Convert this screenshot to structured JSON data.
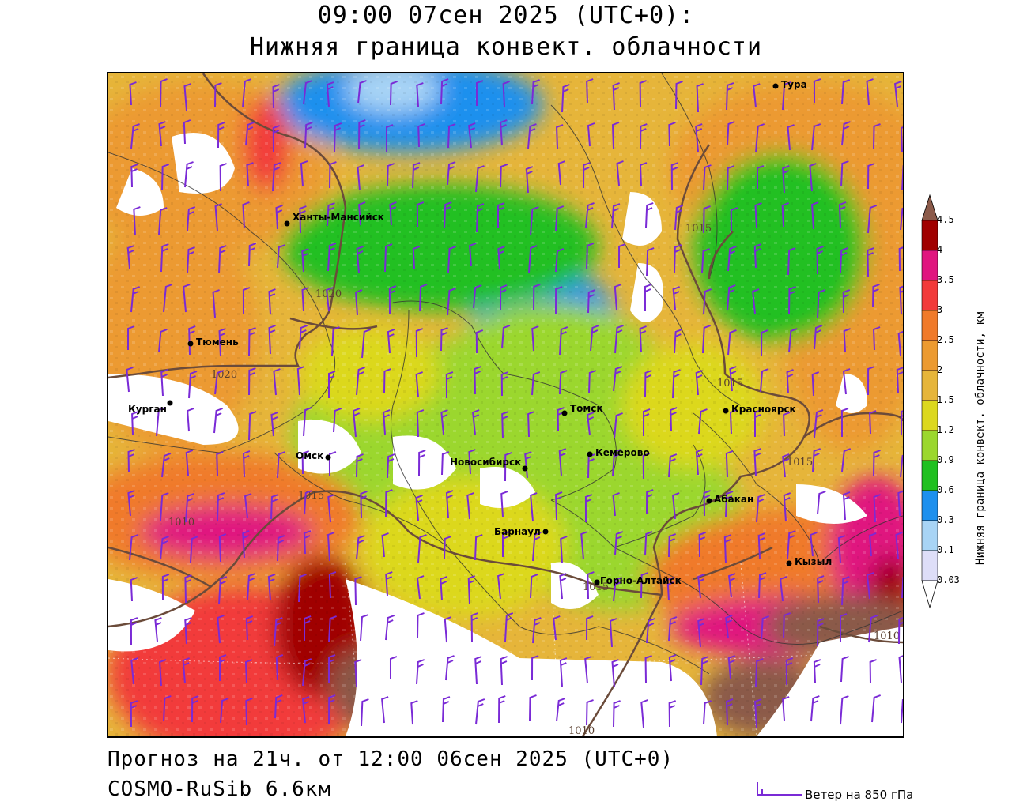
{
  "header": {
    "title_line1": "09:00 07сен 2025 (UTC+0):",
    "title_line2": "Нижняя граница конвект. облачности"
  },
  "footer": {
    "forecast_line": "Прогноз на 21ч. от 12:00 06сен 2025 (UTC+0)",
    "model_line": "COSMO-RuSib 6.6км",
    "wind_legend_label": "Ветер на 850 гПа"
  },
  "colorbar": {
    "title": "Нижняя граница конвект. облачности, км",
    "levels": [
      "4.5",
      "4",
      "3.5",
      "3",
      "2.5",
      "2",
      "1.5",
      "1.2",
      "0.9",
      "0.6",
      "0.3",
      "0.1",
      "0.03"
    ],
    "colors": [
      "#8b5a4a",
      "#a00000",
      "#e0157f",
      "#f23a3a",
      "#f07a2a",
      "#ec9a30",
      "#e6b53a",
      "#dcd81e",
      "#9bd72e",
      "#20c020",
      "#1e90ee",
      "#a8d4f5",
      "#dedef8",
      "#ffffff"
    ]
  },
  "cities": [
    {
      "name": "Тура",
      "id": "tura"
    },
    {
      "name": "Ханты-Мансийск",
      "id": "khanty"
    },
    {
      "name": "Тюмень",
      "id": "tyumen"
    },
    {
      "name": "Курган",
      "id": "kurgan"
    },
    {
      "name": "Омск",
      "id": "omsk"
    },
    {
      "name": "Новосибирск",
      "id": "novosibirsk"
    },
    {
      "name": "Томск",
      "id": "tomsk"
    },
    {
      "name": "Кемерово",
      "id": "kemerovo"
    },
    {
      "name": "Красноярск",
      "id": "krasnoyarsk"
    },
    {
      "name": "Абакан",
      "id": "abakan"
    },
    {
      "name": "Барнаул",
      "id": "barnaul"
    },
    {
      "name": "Горно-Алтайск",
      "id": "gorno"
    },
    {
      "name": "Кызыл",
      "id": "kyzyl"
    }
  ],
  "isobar_labels": [
    "1020",
    "1020",
    "1015",
    "1015",
    "1015",
    "1010",
    "1010",
    "1015",
    "1010",
    "1015"
  ]
}
